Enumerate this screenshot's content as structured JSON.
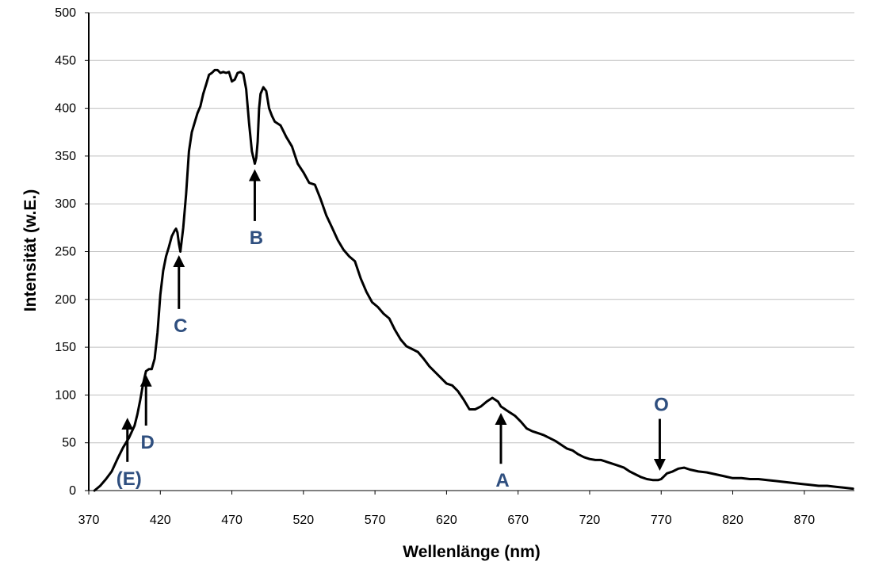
{
  "chart_data": {
    "type": "line",
    "xlabel": "Wellenlänge (nm)",
    "ylabel": "Intensität (w.E.)",
    "xlim": [
      370,
      905
    ],
    "ylim": [
      0,
      500
    ],
    "x_ticks": [
      370,
      420,
      470,
      520,
      570,
      620,
      670,
      720,
      770,
      820,
      870
    ],
    "y_ticks": [
      0,
      50,
      100,
      150,
      200,
      250,
      300,
      350,
      400,
      450,
      500
    ],
    "grid": "horizontal",
    "colors": {
      "line": "#000000",
      "annotation": "#2f4f7f",
      "grid": "#bfbfbf"
    },
    "series": [
      {
        "x": [
          374,
          378,
          382,
          386,
          390,
          394,
          398,
          402,
          404,
          406,
          408,
          410,
          412,
          414,
          416,
          418,
          420,
          422,
          424,
          426,
          428,
          430,
          431,
          432,
          433,
          434,
          436,
          438,
          440,
          442,
          444,
          446,
          448,
          450,
          452,
          454,
          456,
          458,
          460,
          462,
          464,
          466,
          468,
          470,
          472,
          474,
          476,
          478,
          480,
          482,
          484,
          486,
          487,
          488,
          489,
          490,
          492,
          494,
          496,
          498,
          500,
          504,
          508,
          512,
          516,
          520,
          524,
          528,
          532,
          536,
          540,
          544,
          548,
          552,
          556,
          560,
          564,
          568,
          572,
          576,
          580,
          584,
          588,
          592,
          596,
          600,
          604,
          608,
          612,
          616,
          620,
          624,
          628,
          632,
          636,
          640,
          644,
          648,
          652,
          656,
          658,
          660,
          662,
          664,
          666,
          668,
          672,
          676,
          680,
          684,
          688,
          692,
          696,
          700,
          704,
          708,
          712,
          716,
          720,
          724,
          728,
          732,
          736,
          740,
          744,
          748,
          752,
          756,
          760,
          764,
          768,
          770,
          772,
          774,
          778,
          782,
          786,
          790,
          796,
          802,
          808,
          814,
          820,
          826,
          832,
          838,
          844,
          850,
          856,
          862,
          868,
          874,
          880,
          886,
          892,
          898,
          904
        ],
        "y": [
          0,
          5,
          12,
          20,
          33,
          45,
          55,
          68,
          80,
          95,
          112,
          125,
          127,
          127,
          138,
          165,
          205,
          230,
          245,
          255,
          266,
          272,
          274,
          270,
          258,
          250,
          275,
          310,
          355,
          375,
          385,
          395,
          402,
          415,
          425,
          435,
          437,
          440,
          440,
          437,
          438,
          437,
          438,
          428,
          430,
          437,
          438,
          436,
          420,
          385,
          355,
          342,
          348,
          365,
          400,
          415,
          422,
          418,
          400,
          392,
          386,
          382,
          370,
          360,
          342,
          333,
          322,
          320,
          305,
          288,
          275,
          262,
          252,
          245,
          240,
          222,
          208,
          197,
          192,
          185,
          180,
          168,
          158,
          151,
          148,
          145,
          138,
          130,
          124,
          118,
          112,
          110,
          104,
          95,
          85,
          85,
          88,
          93,
          97,
          93,
          88,
          86,
          84,
          82,
          80,
          78,
          72,
          65,
          62,
          60,
          58,
          55,
          52,
          48,
          44,
          42,
          38,
          35,
          33,
          32,
          32,
          30,
          28,
          26,
          24,
          20,
          17,
          14,
          12,
          11,
          11,
          12,
          15,
          18,
          20,
          23,
          24,
          22,
          20,
          19,
          17,
          15,
          13,
          13,
          12,
          12,
          11,
          10,
          9,
          8,
          7,
          6,
          5,
          5,
          4,
          3,
          2
        ]
      }
    ],
    "annotations": [
      {
        "label": "(E)",
        "x": 397,
        "y_from": 30,
        "y_to": 70
      },
      {
        "label": "D",
        "x": 410,
        "y_from": 68,
        "y_to": 115
      },
      {
        "label": "C",
        "x": 433,
        "y_from": 190,
        "y_to": 240
      },
      {
        "label": "B",
        "x": 486,
        "y_from": 282,
        "y_to": 330
      },
      {
        "label": "A",
        "x": 658,
        "y_from": 28,
        "y_to": 75
      },
      {
        "label": "O",
        "x": 769,
        "y_from": 75,
        "y_to": 27
      }
    ]
  }
}
